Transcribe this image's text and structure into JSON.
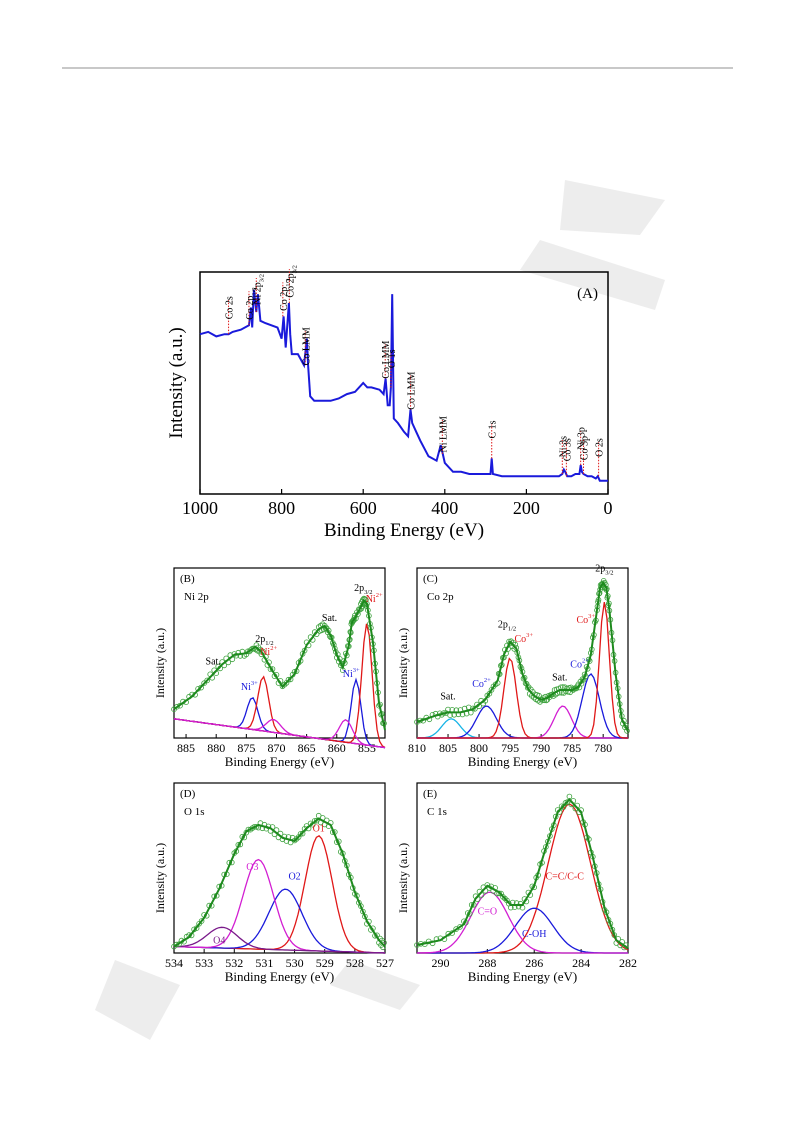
{
  "colors": {
    "survey": "#1a1adb",
    "fit": "#1e8a1e",
    "red": "#e01818",
    "blue": "#1a1adb",
    "magenta": "#d21ed2",
    "cyan": "#18b4e6",
    "ann_red": "#e01818"
  },
  "chart_data": [
    {
      "id": "A",
      "type": "line",
      "panel_label": "(A)",
      "xlabel": "Binding Energy (eV)",
      "ylabel": "Intensity (a.u.)",
      "xlim": [
        1000,
        0
      ],
      "ylim": [
        0,
        100
      ],
      "xticks": [
        "1000",
        "800",
        "600",
        "400",
        "200",
        "0"
      ],
      "series": [
        {
          "x": [
            1000,
            980,
            960,
            940,
            930,
            920,
            900,
            880,
            875,
            872,
            868,
            862,
            858,
            855,
            852,
            840,
            810,
            800,
            795,
            790,
            782,
            779,
            775,
            760,
            745,
            738,
            735,
            730,
            720,
            700,
            680,
            660,
            640,
            620,
            600,
            590,
            580,
            560,
            550,
            545,
            540,
            535,
            532,
            529,
            525,
            515,
            500,
            490,
            484,
            480,
            470,
            460,
            440,
            420,
            410,
            405,
            400,
            380,
            360,
            340,
            320,
            300,
            288,
            285,
            282,
            260,
            240,
            220,
            200,
            180,
            160,
            140,
            120,
            112,
            108,
            105,
            100,
            90,
            80,
            70,
            67,
            64,
            60,
            50,
            40,
            30,
            25,
            20,
            10,
            0
          ],
          "y": [
            72,
            73,
            71,
            72,
            72,
            73,
            74,
            76,
            84,
            75,
            92,
            82,
            90,
            84,
            78,
            77,
            75,
            70,
            80,
            66,
            86,
            72,
            63,
            63,
            58,
            70,
            58,
            44,
            42,
            42,
            42,
            43,
            45,
            46,
            50,
            48,
            48,
            47,
            45,
            52,
            40,
            40,
            48,
            90,
            34,
            32,
            28,
            26,
            38,
            32,
            28,
            24,
            17,
            15,
            22,
            18,
            14,
            10,
            10,
            9,
            9,
            9,
            9,
            16,
            9,
            8,
            8,
            8,
            8,
            8,
            8,
            8,
            8,
            9,
            11,
            10,
            8,
            8,
            9,
            9,
            13,
            10,
            9,
            8,
            8,
            7,
            8,
            6,
            6,
            6
          ]
        }
      ],
      "annotations": [
        {
          "x": 930,
          "label": "Co 2s"
        },
        {
          "x": 880,
          "label": "Co 2p",
          "sub": "1/2"
        },
        {
          "x": 862,
          "label": "Ni 2p",
          "sub": "3/2"
        },
        {
          "x": 797,
          "label": "Co 2p",
          "sub": "1/2"
        },
        {
          "x": 781,
          "label": "Co 2p",
          "sub": "3/2"
        },
        {
          "x": 742,
          "label": "Co LMM"
        },
        {
          "x": 546,
          "label": "Co LMM"
        },
        {
          "x": 532,
          "label": "O 1s"
        },
        {
          "x": 484,
          "label": "Co LMM"
        },
        {
          "x": 406,
          "label": "Ni LMM"
        },
        {
          "x": 285,
          "label": "C 1s"
        },
        {
          "x": 112,
          "label": "Ni 3s"
        },
        {
          "x": 102,
          "label": "Co 3s"
        },
        {
          "x": 67,
          "label": "Ni 3p"
        },
        {
          "x": 60,
          "label": "Co 3p"
        },
        {
          "x": 23,
          "label": "O 2s"
        }
      ]
    },
    {
      "id": "B",
      "type": "line",
      "panel_label": "(B)",
      "title": "Ni 2p",
      "xlabel": "Binding Energy (eV)",
      "ylabel": "Intensity (a.u.)",
      "xlim": [
        887,
        852
      ],
      "ylim": [
        0,
        100
      ],
      "xticks": [
        "885",
        "880",
        "875",
        "870",
        "865",
        "860",
        "855"
      ],
      "envelope": {
        "x": [
          887,
          884,
          881,
          879,
          877,
          875,
          873.5,
          872.5,
          871,
          869,
          867,
          865,
          863,
          862,
          861,
          860,
          859,
          858,
          857.5,
          857,
          856,
          855.5,
          855,
          854,
          853,
          852
        ],
        "y": [
          18,
          26,
          38,
          46,
          52,
          53,
          57,
          54,
          44,
          32,
          40,
          58,
          68,
          70,
          64,
          52,
          44,
          58,
          72,
          75,
          82,
          86,
          84,
          60,
          22,
          5
        ]
      },
      "baseline": [
        [
          887,
          12
        ],
        [
          852,
          -6
        ]
      ],
      "peaks": [
        {
          "name": "Sat.",
          "x": 880.5,
          "y": 46
        },
        {
          "name": "2p",
          "sub": "1/2",
          "x": 872,
          "y": 60
        },
        {
          "name": "Ni",
          "sup": "2+",
          "x": 871.3,
          "y": 52,
          "color": "red"
        },
        {
          "name": "Ni",
          "sup": "3+",
          "x": 874.5,
          "y": 30,
          "color": "blue"
        },
        {
          "name": "Sat.",
          "x": 861.2,
          "y": 73
        },
        {
          "name": "Ni",
          "sup": "3+",
          "x": 857.6,
          "y": 38,
          "color": "blue"
        },
        {
          "name": "2p",
          "sub": "3/2",
          "x": 855.6,
          "y": 92
        },
        {
          "name": "Ni",
          "sup": "2+",
          "x": 853.8,
          "y": 85,
          "color": "red"
        }
      ]
    },
    {
      "id": "C",
      "type": "line",
      "panel_label": "(C)",
      "title": "Co 2p",
      "xlabel": "Binding Energy (eV)",
      "ylabel": "Intensity (a.u.)",
      "xlim": [
        810,
        776
      ],
      "ylim": [
        0,
        100
      ],
      "xticks": [
        "810",
        "805",
        "800",
        "795",
        "790",
        "785",
        "780"
      ],
      "envelope": {
        "x": [
          810,
          807,
          805,
          803,
          801,
          799,
          797,
          796,
          795,
          794,
          793,
          792,
          791,
          790,
          789,
          788,
          787,
          786,
          785,
          784,
          783,
          782,
          781,
          780.5,
          780,
          779.5,
          779,
          778,
          777,
          776
        ],
        "y": [
          10,
          14,
          16,
          16,
          18,
          24,
          36,
          52,
          60,
          56,
          40,
          30,
          26,
          24,
          25,
          28,
          30,
          30,
          30,
          32,
          38,
          52,
          80,
          94,
          97,
          94,
          80,
          40,
          12,
          4
        ]
      },
      "peaks": [
        {
          "name": "Sat.",
          "x": 805,
          "y": 24
        },
        {
          "name": "Co",
          "sup": "2+",
          "x": 799.6,
          "y": 32,
          "color": "blue"
        },
        {
          "name": "2p",
          "sub": "1/2",
          "x": 795.5,
          "y": 69
        },
        {
          "name": "Co",
          "sup": "3+",
          "x": 792.8,
          "y": 60,
          "color": "red"
        },
        {
          "name": "Sat.",
          "x": 787,
          "y": 36
        },
        {
          "name": "Co",
          "sup": "2+",
          "x": 783.8,
          "y": 44,
          "color": "blue"
        },
        {
          "name": "Co",
          "sup": "3+",
          "x": 782.8,
          "y": 72,
          "color": "red"
        },
        {
          "name": "2p",
          "sub": "3/2",
          "x": 779.8,
          "y": 104
        }
      ]
    },
    {
      "id": "D",
      "type": "line",
      "panel_label": "(D)",
      "title": "O 1s",
      "xlabel": "Binding Energy (eV)",
      "ylabel": "Intensity (a.u.)",
      "xlim": [
        534,
        527
      ],
      "ylim": [
        0,
        100
      ],
      "xticks": [
        "534",
        "533",
        "532",
        "531",
        "530",
        "529",
        "528",
        "527"
      ],
      "envelope": {
        "x": [
          534,
          533.5,
          533,
          532.5,
          532,
          531.6,
          531.2,
          530.8,
          530.4,
          530,
          529.6,
          529.2,
          528.8,
          528.4,
          528,
          527.6,
          527.2,
          527
        ],
        "y": [
          4,
          10,
          22,
          40,
          62,
          76,
          80,
          78,
          72,
          70,
          78,
          84,
          80,
          62,
          38,
          20,
          8,
          4
        ]
      },
      "components": [
        {
          "name": "O1",
          "color": "red",
          "center": 529.2,
          "amp": 72,
          "width": 0.45
        },
        {
          "name": "O2",
          "color": "blue",
          "center": 530.3,
          "amp": 38,
          "width": 0.55
        },
        {
          "name": "O3",
          "color": "magenta",
          "center": 531.2,
          "amp": 56,
          "width": 0.5
        },
        {
          "name": "O4",
          "color": "purple",
          "center": 532.4,
          "amp": 13,
          "width": 0.5
        }
      ],
      "baseline": [
        [
          534,
          4
        ],
        [
          527,
          0
        ]
      ]
    },
    {
      "id": "E",
      "type": "line",
      "panel_label": "(E)",
      "title": "C 1s",
      "xlabel": "Binding Energy (eV)",
      "ylabel": "Intensity (a.u.)",
      "xlim": [
        291,
        282
      ],
      "ylim": [
        0,
        100
      ],
      "xticks": [
        "290",
        "288",
        "286",
        "284",
        "282"
      ],
      "envelope": {
        "x": [
          291,
          290,
          289,
          288.5,
          288,
          287.5,
          287,
          286.5,
          286,
          285.5,
          285,
          284.5,
          284,
          283.5,
          283,
          282.5,
          282
        ],
        "y": [
          5,
          8,
          18,
          34,
          42,
          38,
          30,
          30,
          42,
          66,
          88,
          96,
          88,
          60,
          28,
          8,
          3
        ]
      },
      "components": [
        {
          "name": "C=C/C-C",
          "color": "red",
          "center": 284.5,
          "amp": 93,
          "width": 0.9
        },
        {
          "name": "C-OH",
          "color": "blue",
          "center": 286.0,
          "amp": 28,
          "width": 0.8
        },
        {
          "name": "C=O",
          "color": "magenta",
          "center": 287.9,
          "amp": 38,
          "width": 0.8
        }
      ]
    }
  ]
}
